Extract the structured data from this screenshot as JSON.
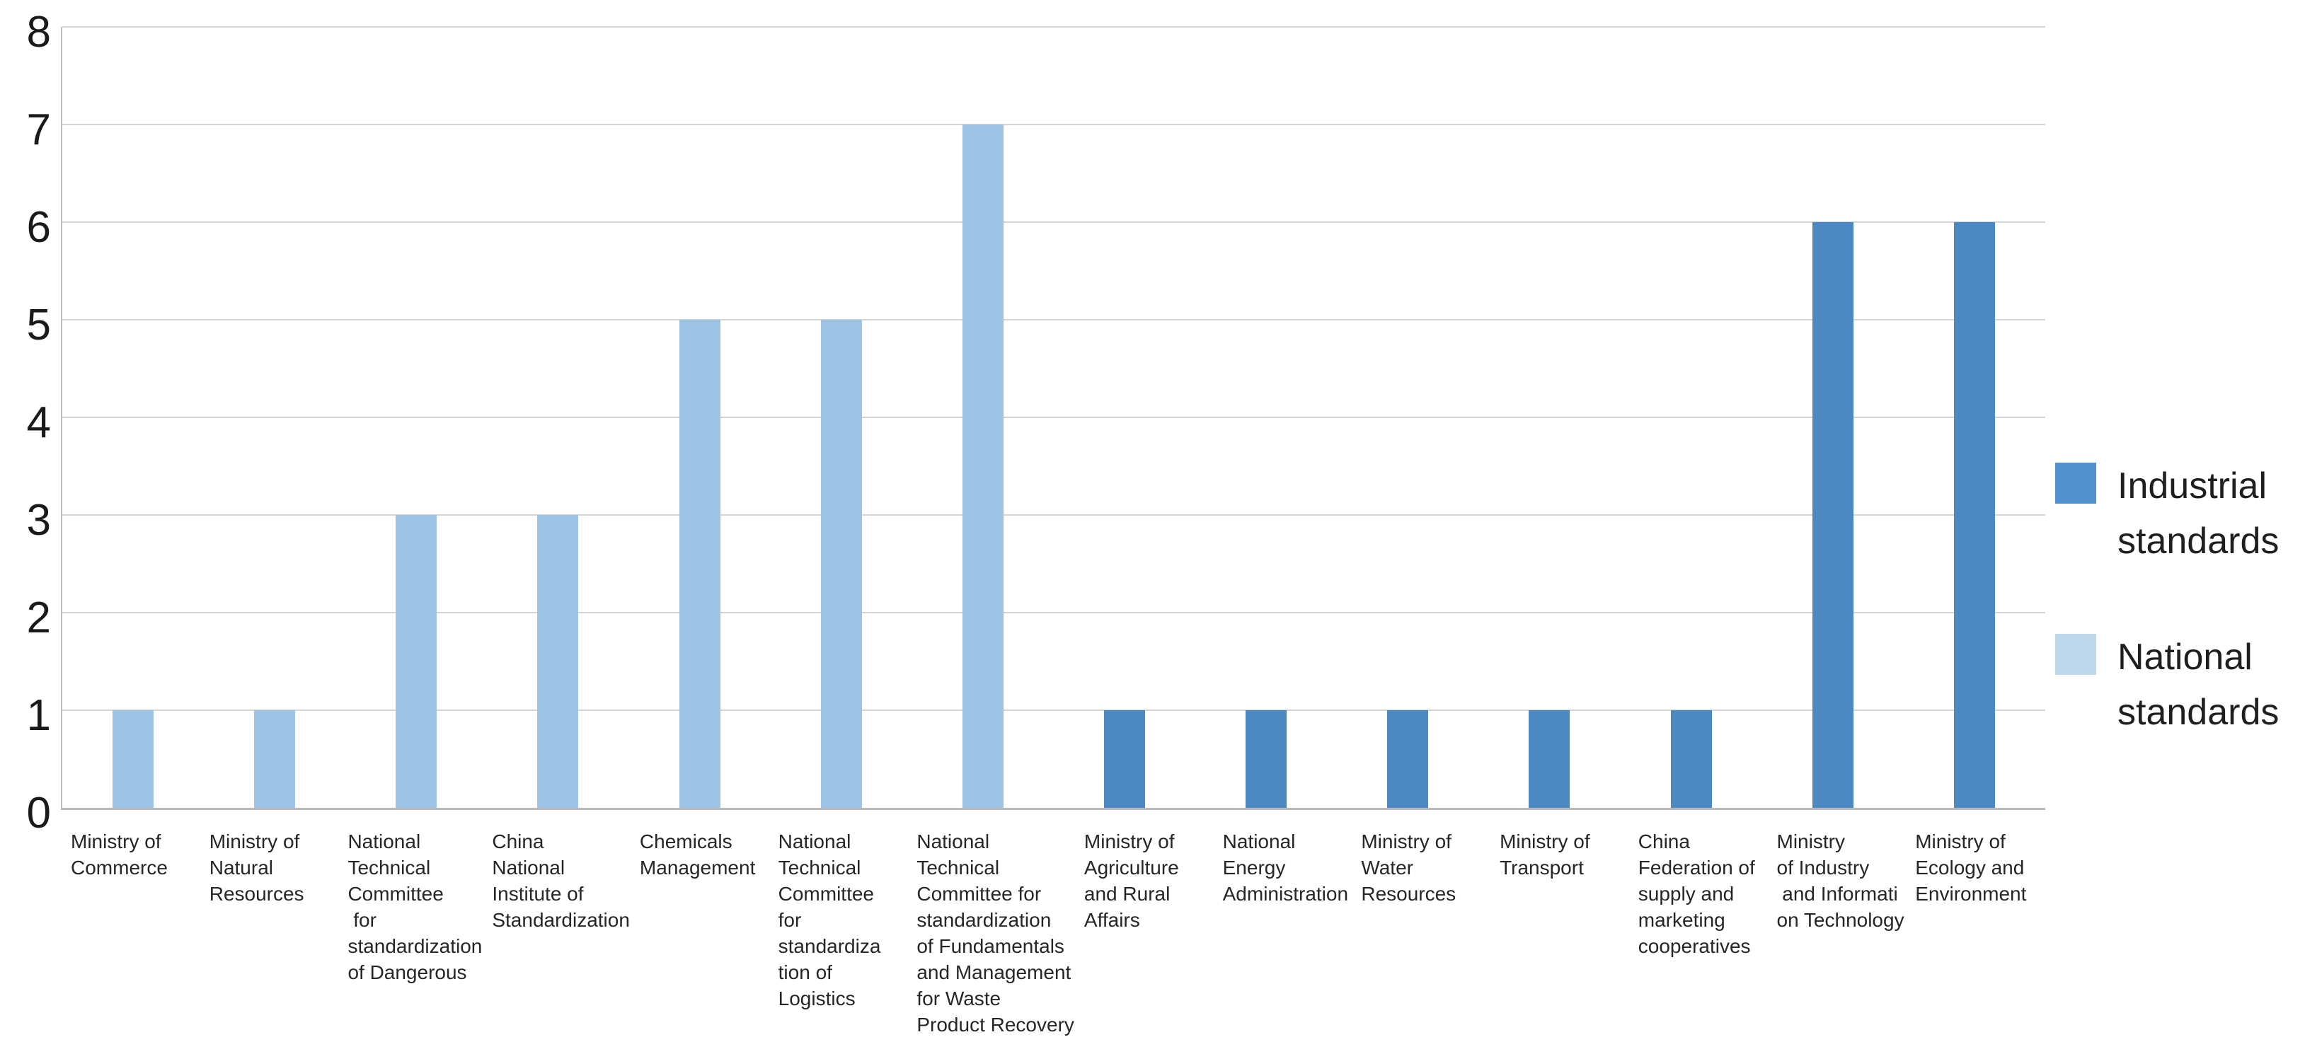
{
  "chart_data": {
    "type": "bar",
    "title": "",
    "xlabel": "",
    "ylabel": "",
    "ylim": [
      0,
      8
    ],
    "y_ticks": [
      0,
      1,
      2,
      3,
      4,
      5,
      6,
      7,
      8
    ],
    "grid": true,
    "legend_position": "right",
    "series": [
      {
        "name": "Industrial standards",
        "color": "#4c89c3"
      },
      {
        "name": "National standards",
        "color": "#9dc3e6"
      }
    ],
    "points": [
      {
        "label": "Ministry of\nCommerce",
        "series": "National standards",
        "value": 1
      },
      {
        "label": "Ministry of\nNatural\nResources",
        "series": "National standards",
        "value": 1
      },
      {
        "label": "National\nTechnical\nCommittee\n for\nstandardization\nof Dangerous",
        "series": "National standards",
        "value": 3
      },
      {
        "label": "China\nNational\nInstitute of\nStandardization",
        "series": "National standards",
        "value": 3
      },
      {
        "label": "Chemicals\nManagement",
        "series": "National standards",
        "value": 5
      },
      {
        "label": "National\nTechnical\nCommittee\nfor\nstandardiza\ntion of\nLogistics",
        "series": "National standards",
        "value": 5
      },
      {
        "label": "National\nTechnical\nCommittee for\nstandardization\nof Fundamentals\nand Management\nfor Waste\nProduct Recovery",
        "series": "National standards",
        "value": 7
      },
      {
        "label": "Ministry of\nAgriculture\nand Rural\nAffairs",
        "series": "Industrial standards",
        "value": 1
      },
      {
        "label": "National\nEnergy\nAdministration",
        "series": "Industrial standards",
        "value": 1
      },
      {
        "label": "Ministry of\nWater\nResources",
        "series": "Industrial standards",
        "value": 1
      },
      {
        "label": "Ministry of\nTransport",
        "series": "Industrial standards",
        "value": 1
      },
      {
        "label": "China\nFederation of\nsupply and\nmarketing\ncooperatives",
        "series": "Industrial standards",
        "value": 1
      },
      {
        "label": "Ministry\nof Industry\n and Informati\non Technology",
        "series": "Industrial standards",
        "value": 6
      },
      {
        "label": "Ministry of\nEcology and\nEnvironment",
        "series": "Industrial standards",
        "value": 6
      }
    ]
  },
  "legend": {
    "items": [
      {
        "label": "Industrial\nstandards",
        "series": "Industrial standards",
        "swatch_color": "#5191cf"
      },
      {
        "label": "National\nstandards",
        "series": "National standards",
        "swatch_color": "#bed8ee"
      }
    ]
  },
  "colors": {
    "gridline": "#d4d4d4",
    "axis_line": "#b9b9b9",
    "background": "#ffffff"
  }
}
